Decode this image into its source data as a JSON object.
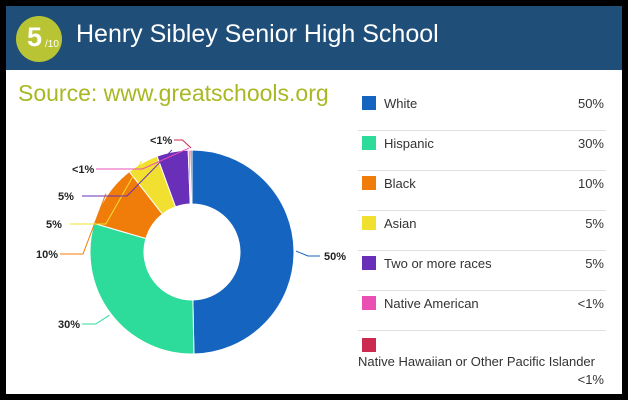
{
  "header": {
    "rating_value": "5",
    "rating_scale": "/10",
    "title": "Henry Sibley Senior High School"
  },
  "source": "Source: www.greatschools.org",
  "chart_data": {
    "type": "pie",
    "style": "donut",
    "categories": [
      "White",
      "Hispanic",
      "Black",
      "Asian",
      "Two or more races",
      "Native American",
      "Native Hawaiian or Other Pacific Islander"
    ],
    "values": [
      50,
      30,
      10,
      5,
      5,
      0.3,
      0.3
    ],
    "value_labels": [
      "50%",
      "30%",
      "10%",
      "5%",
      "5%",
      "<1%",
      "<1%"
    ],
    "colors": [
      "#1565c0",
      "#2ddc9a",
      "#f07d0a",
      "#f2e030",
      "#6a2fb8",
      "#ea4fb4",
      "#cc2a4e"
    ],
    "legend_position": "right"
  }
}
